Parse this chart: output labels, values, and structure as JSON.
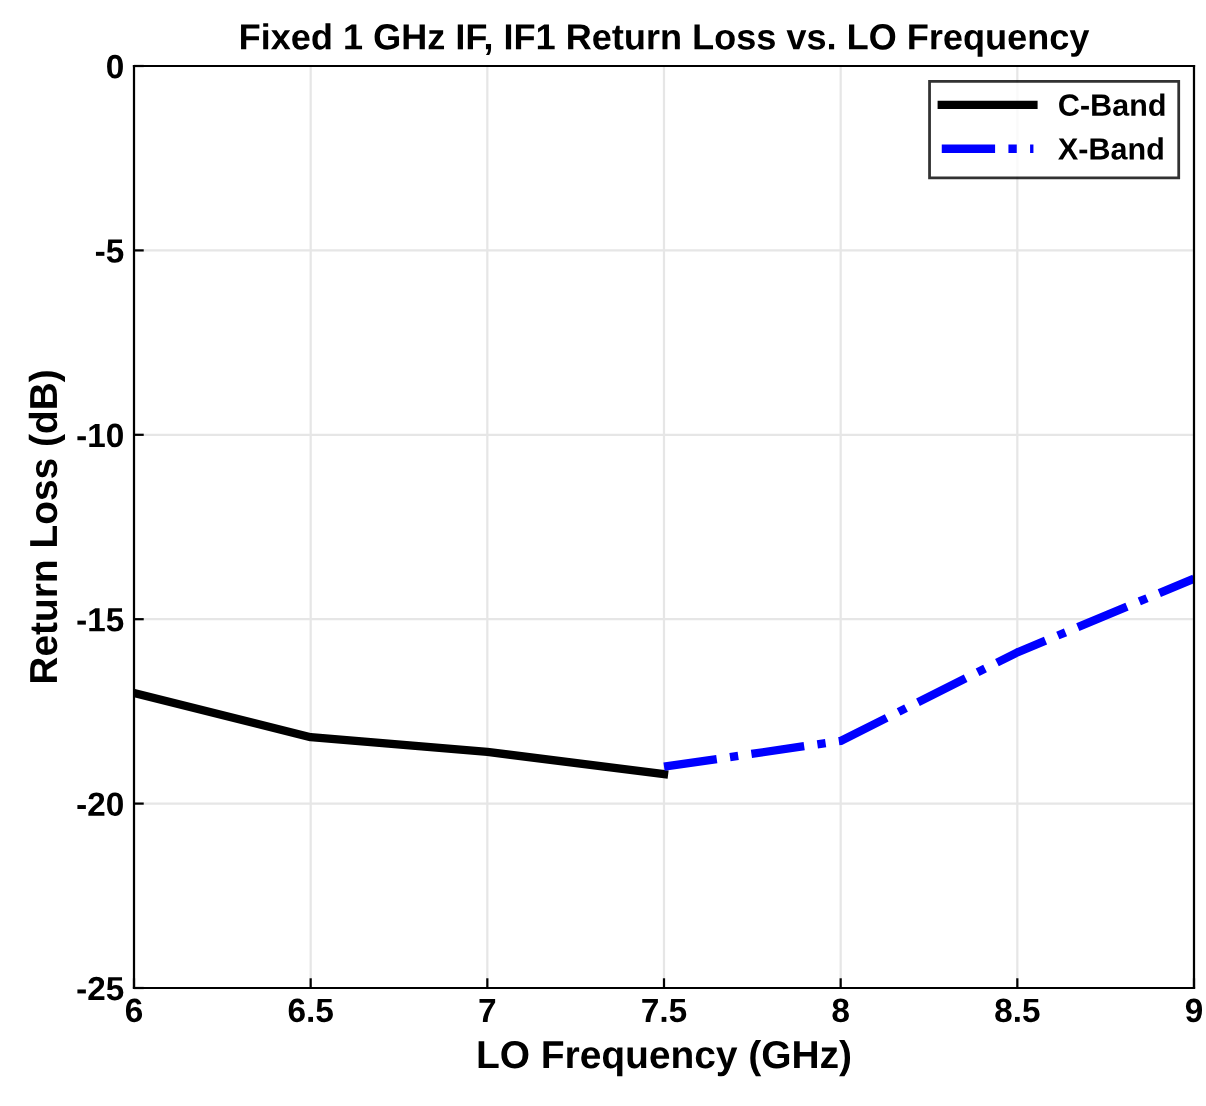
{
  "chart_data": {
    "type": "line",
    "title": "Fixed 1 GHz IF, IF1 Return Loss vs. LO Frequency",
    "xlabel": "LO Frequency (GHz)",
    "ylabel": "Return Loss (dB)",
    "series": [
      {
        "name": "C-Band",
        "color": "#000000",
        "x": [
          6,
          6.5,
          7,
          7.5
        ],
        "values": [
          -17.0,
          -18.2,
          -18.6,
          -19.2
        ],
        "line_style": "solid"
      },
      {
        "name": "X-Band",
        "color": "#0000ff",
        "x": [
          7.5,
          8,
          8.5,
          9
        ],
        "values": [
          -19.0,
          -18.3,
          -15.9,
          -13.9
        ],
        "line_style": "dashdot"
      }
    ],
    "xlim": [
      6,
      9
    ],
    "xticks": [
      6,
      6.5,
      7,
      7.5,
      8,
      8.5,
      9
    ],
    "ylim": [
      -25,
      0
    ],
    "yticks": [
      -25,
      -20,
      -15,
      -10,
      -5,
      0
    ],
    "grid": true,
    "legend": "top right",
    "marker": "none"
  }
}
